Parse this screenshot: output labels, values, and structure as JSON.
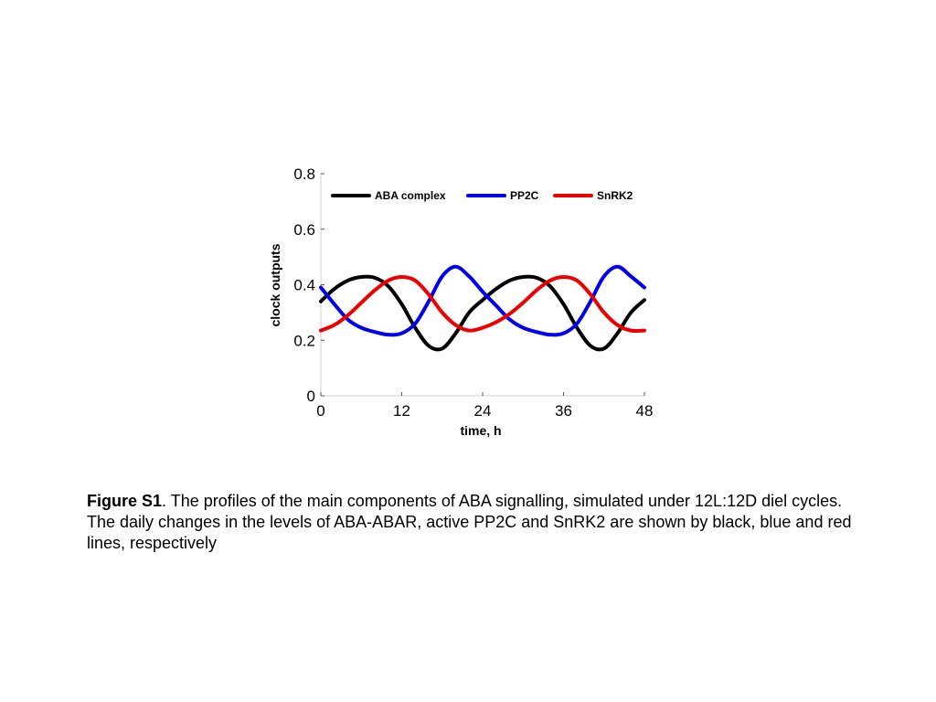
{
  "chart_data": {
    "type": "line",
    "title": "",
    "xlabel": "time, h",
    "ylabel": "clock outputs",
    "xlim": [
      0,
      48
    ],
    "ylim": [
      0,
      0.8
    ],
    "xticks": [
      "0",
      "12",
      "24",
      "36",
      "48"
    ],
    "yticks": [
      "0",
      "0.2",
      "0.4",
      "0.6",
      "0.8"
    ],
    "grid": false,
    "legend": "top, horizontal",
    "x": [
      0,
      2,
      4,
      6,
      8,
      10,
      12,
      14,
      16,
      18,
      20,
      22,
      24,
      26,
      28,
      30,
      32,
      34,
      36,
      38,
      40,
      42,
      44,
      46,
      48
    ],
    "series": [
      {
        "name": "ABA complex",
        "color": "#000000",
        "values": [
          0.34,
          0.385,
          0.415,
          0.428,
          0.425,
          0.395,
          0.33,
          0.245,
          0.18,
          0.17,
          0.225,
          0.3,
          0.345,
          0.385,
          0.415,
          0.428,
          0.425,
          0.395,
          0.33,
          0.245,
          0.18,
          0.17,
          0.225,
          0.3,
          0.345
        ]
      },
      {
        "name": "PP2C",
        "color": "#0000ee",
        "values": [
          0.39,
          0.33,
          0.275,
          0.245,
          0.23,
          0.22,
          0.225,
          0.26,
          0.34,
          0.43,
          0.465,
          0.43,
          0.375,
          0.325,
          0.275,
          0.245,
          0.23,
          0.22,
          0.225,
          0.26,
          0.34,
          0.43,
          0.465,
          0.43,
          0.39
        ]
      },
      {
        "name": "SnRK2",
        "color": "#ee0000",
        "values": [
          0.235,
          0.255,
          0.29,
          0.335,
          0.38,
          0.415,
          0.428,
          0.415,
          0.365,
          0.3,
          0.255,
          0.235,
          0.245,
          0.265,
          0.295,
          0.335,
          0.38,
          0.415,
          0.428,
          0.415,
          0.365,
          0.3,
          0.255,
          0.235,
          0.235
        ]
      }
    ]
  },
  "caption": {
    "label": "Figure S1",
    "text": ". The profiles of the main components of ABA signalling, simulated under 12L:12D diel cycles. The daily changes in the levels of ABA-ABAR, active PP2C and SnRK2 are shown by black, blue and red lines, respectively"
  }
}
